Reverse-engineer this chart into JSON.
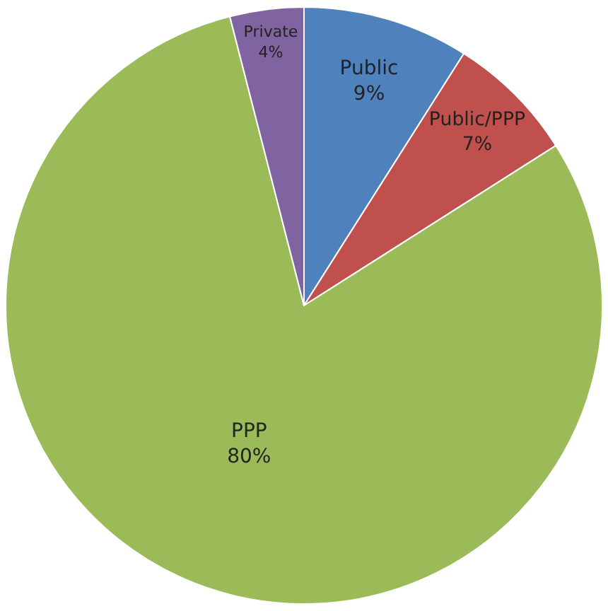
{
  "chart_data": {
    "type": "pie",
    "categories": [
      "Public",
      "Public/PPP",
      "PPP",
      "Private"
    ],
    "values": [
      9,
      7,
      80,
      4
    ],
    "value_labels": [
      "9%",
      "7%",
      "80%",
      "4%"
    ],
    "colors": [
      "#4f81bd",
      "#c0504d",
      "#9bbb59",
      "#8064a2"
    ],
    "legend": false
  }
}
